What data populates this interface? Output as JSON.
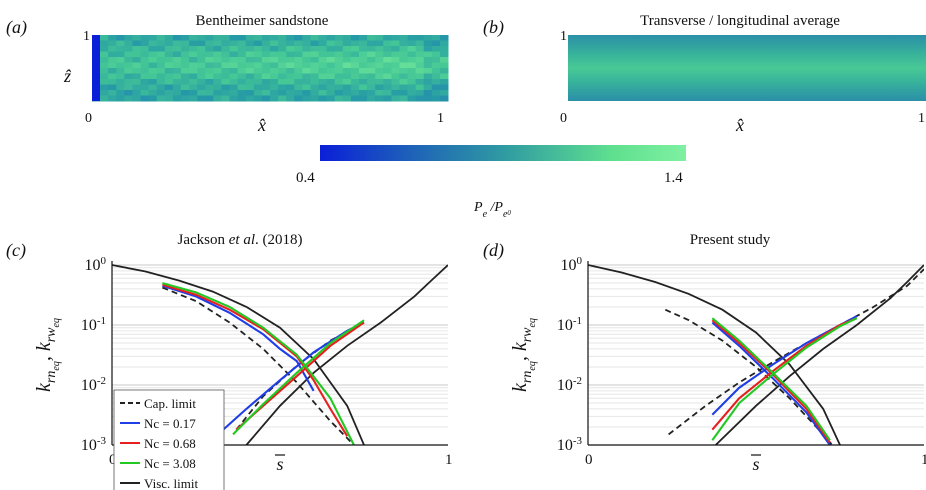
{
  "panels": {
    "a": {
      "label": "(a)",
      "title": "Bentheimer sandstone",
      "ylabel": "ẑ",
      "xlabel": "x̂",
      "x_ticks": [
        "0",
        "1"
      ],
      "y_ticks": [
        "1"
      ]
    },
    "b": {
      "label": "(b)",
      "title": "Transverse / longitudinal average",
      "xlabel": "x̂",
      "x_ticks": [
        "0",
        "1"
      ],
      "y_ticks": [
        "1"
      ]
    },
    "c": {
      "label": "(c)",
      "title_pre": "Jackson ",
      "title_em": "et al",
      "title_post": ". (2018)"
    },
    "d": {
      "label": "(d)",
      "title": "Present study"
    }
  },
  "colorbar": {
    "min_label": "0.4",
    "max_label": "1.4",
    "label": "Pe / Pe0",
    "colors": [
      "#0b1fd8",
      "#1e62b8",
      "#2f9aa2",
      "#5fe08f",
      "#7ff0a2"
    ]
  },
  "legend": {
    "items": [
      {
        "label": "Cap. limit",
        "color": "#222222",
        "style": "dashed"
      },
      {
        "label": "Nc = 0.17",
        "color": "#1f3ee6",
        "style": "solid"
      },
      {
        "label": "Nc = 0.68",
        "color": "#e62020",
        "style": "solid"
      },
      {
        "label": "Nc = 3.08",
        "color": "#22c922",
        "style": "solid"
      },
      {
        "label": "Visc. limit",
        "color": "#222222",
        "style": "solid"
      }
    ]
  },
  "chart_data": [
    {
      "type": "heatmap",
      "panel": "a",
      "title": "Bentheimer sandstone",
      "xlabel": "x̂",
      "ylabel": "ẑ",
      "xlim": [
        0,
        1
      ],
      "ylim": [
        0,
        1
      ],
      "colorscale": {
        "min": 0.4,
        "max": 1.4
      }
    },
    {
      "type": "heatmap",
      "panel": "b",
      "title": "Transverse / longitudinal average",
      "xlabel": "x̂",
      "xlim": [
        0,
        1
      ],
      "ylim": [
        0,
        1
      ],
      "colorscale": {
        "min": 0.4,
        "max": 1.4
      }
    },
    {
      "type": "line",
      "panel": "c",
      "title": "Jackson et al. (2018)",
      "xlabel": "s̄",
      "ylabel": "k_rn_eq, k_rw_eq",
      "xlim": [
        0,
        1
      ],
      "ylim": [
        0.001,
        1
      ],
      "yscale": "log",
      "x_ticks": [
        "0",
        "1"
      ],
      "y_ticks": [
        "10^0",
        "10^-1",
        "10^-2",
        "10^-3"
      ],
      "grid": true,
      "legend_position": "bottom-left",
      "series": [
        {
          "name": "Visc. limit",
          "kind": "krn",
          "x": [
            0,
            0.1,
            0.2,
            0.3,
            0.4,
            0.5,
            0.6,
            0.7,
            0.75
          ],
          "y": [
            1.0,
            0.78,
            0.55,
            0.36,
            0.2,
            0.09,
            0.027,
            0.0045,
            0.001
          ]
        },
        {
          "name": "Visc. limit",
          "kind": "krw",
          "x": [
            0.4,
            0.5,
            0.6,
            0.7,
            0.8,
            0.9,
            0.95,
            1.0
          ],
          "y": [
            0.001,
            0.0045,
            0.016,
            0.045,
            0.11,
            0.3,
            0.55,
            1.0
          ]
        },
        {
          "name": "Cap. limit",
          "kind": "krn",
          "x": [
            0.15,
            0.25,
            0.35,
            0.45,
            0.55,
            0.65,
            0.72
          ],
          "y": [
            0.42,
            0.25,
            0.11,
            0.04,
            0.011,
            0.0025,
            0.001
          ]
        },
        {
          "name": "Cap. limit",
          "kind": "krw",
          "x": [
            0.37,
            0.45,
            0.55,
            0.65,
            0.75
          ],
          "y": [
            0.0018,
            0.0065,
            0.021,
            0.055,
            0.11
          ]
        },
        {
          "name": "Nc = 0.17",
          "kind": "krn",
          "x": [
            0.15,
            0.25,
            0.35,
            0.45,
            0.5,
            0.55,
            0.6
          ],
          "y": [
            0.45,
            0.3,
            0.16,
            0.07,
            0.04,
            0.025,
            0.008
          ]
        },
        {
          "name": "Nc = 0.17",
          "kind": "krw",
          "x": [
            0.28,
            0.4,
            0.5,
            0.6,
            0.7,
            0.75
          ],
          "y": [
            0.001,
            0.004,
            0.012,
            0.035,
            0.08,
            0.11
          ]
        },
        {
          "name": "Nc = 0.68",
          "kind": "krn",
          "x": [
            0.15,
            0.25,
            0.35,
            0.45,
            0.55,
            0.6,
            0.65,
            0.7
          ],
          "y": [
            0.47,
            0.32,
            0.18,
            0.085,
            0.03,
            0.012,
            0.004,
            0.0014
          ]
        },
        {
          "name": "Nc = 0.68",
          "kind": "krw",
          "x": [
            0.37,
            0.45,
            0.55,
            0.65,
            0.75
          ],
          "y": [
            0.0018,
            0.0045,
            0.014,
            0.045,
            0.11
          ]
        },
        {
          "name": "Nc = 3.08",
          "kind": "krn",
          "x": [
            0.15,
            0.25,
            0.35,
            0.45,
            0.55,
            0.65,
            0.72
          ],
          "y": [
            0.5,
            0.35,
            0.2,
            0.09,
            0.032,
            0.006,
            0.001
          ]
        },
        {
          "name": "Nc = 3.08",
          "kind": "krw",
          "x": [
            0.36,
            0.45,
            0.55,
            0.65,
            0.75
          ],
          "y": [
            0.0015,
            0.0048,
            0.016,
            0.05,
            0.12
          ]
        }
      ]
    },
    {
      "type": "line",
      "panel": "d",
      "title": "Present study",
      "xlabel": "s̄",
      "ylabel": "k_rn_eq, k_rw_eq",
      "xlim": [
        0,
        1
      ],
      "ylim": [
        0.001,
        1
      ],
      "yscale": "log",
      "x_ticks": [
        "0",
        "1"
      ],
      "y_ticks": [
        "10^0",
        "10^-1",
        "10^-2",
        "10^-3"
      ],
      "grid": true,
      "series": [
        {
          "name": "Visc. limit",
          "kind": "krn",
          "x": [
            0,
            0.1,
            0.2,
            0.3,
            0.4,
            0.5,
            0.6,
            0.7,
            0.75
          ],
          "y": [
            1.0,
            0.75,
            0.52,
            0.33,
            0.18,
            0.075,
            0.022,
            0.004,
            0.001
          ]
        },
        {
          "name": "Visc. limit",
          "kind": "krw",
          "x": [
            0.38,
            0.5,
            0.6,
            0.7,
            0.8,
            0.9,
            0.95,
            1.0
          ],
          "y": [
            0.001,
            0.0045,
            0.014,
            0.04,
            0.1,
            0.28,
            0.52,
            1.0
          ]
        },
        {
          "name": "Cap. limit",
          "kind": "krn",
          "x": [
            0.23,
            0.3,
            0.4,
            0.5,
            0.6,
            0.7,
            0.75
          ],
          "y": [
            0.18,
            0.12,
            0.055,
            0.02,
            0.006,
            0.0015,
            0.0007
          ]
        },
        {
          "name": "Cap. limit",
          "kind": "krw",
          "x": [
            0.24,
            0.35,
            0.45,
            0.55,
            0.65,
            0.75,
            0.85,
            0.95,
            1.0
          ],
          "y": [
            0.0015,
            0.0045,
            0.011,
            0.024,
            0.05,
            0.1,
            0.2,
            0.45,
            0.85
          ]
        },
        {
          "name": "Nc = 0.17",
          "kind": "krn",
          "x": [
            0.37,
            0.45,
            0.55,
            0.65,
            0.72
          ],
          "y": [
            0.11,
            0.045,
            0.013,
            0.0035,
            0.001
          ]
        },
        {
          "name": "Nc = 0.17",
          "kind": "krw",
          "x": [
            0.37,
            0.45,
            0.55,
            0.65,
            0.75,
            0.8
          ],
          "y": [
            0.0032,
            0.009,
            0.022,
            0.05,
            0.1,
            0.14
          ]
        },
        {
          "name": "Nc = 0.68",
          "kind": "krn",
          "x": [
            0.37,
            0.45,
            0.55,
            0.65,
            0.72
          ],
          "y": [
            0.12,
            0.05,
            0.015,
            0.004,
            0.0011
          ]
        },
        {
          "name": "Nc = 0.68",
          "kind": "krw",
          "x": [
            0.37,
            0.45,
            0.55,
            0.65,
            0.75,
            0.8
          ],
          "y": [
            0.0018,
            0.006,
            0.017,
            0.045,
            0.1,
            0.13
          ]
        },
        {
          "name": "Nc = 3.08",
          "kind": "krn",
          "x": [
            0.37,
            0.45,
            0.55,
            0.65,
            0.72
          ],
          "y": [
            0.13,
            0.055,
            0.016,
            0.0045,
            0.0012
          ]
        },
        {
          "name": "Nc = 3.08",
          "kind": "krw",
          "x": [
            0.37,
            0.45,
            0.55,
            0.65,
            0.75,
            0.8
          ],
          "y": [
            0.0012,
            0.005,
            0.015,
            0.042,
            0.095,
            0.13
          ]
        }
      ]
    }
  ]
}
